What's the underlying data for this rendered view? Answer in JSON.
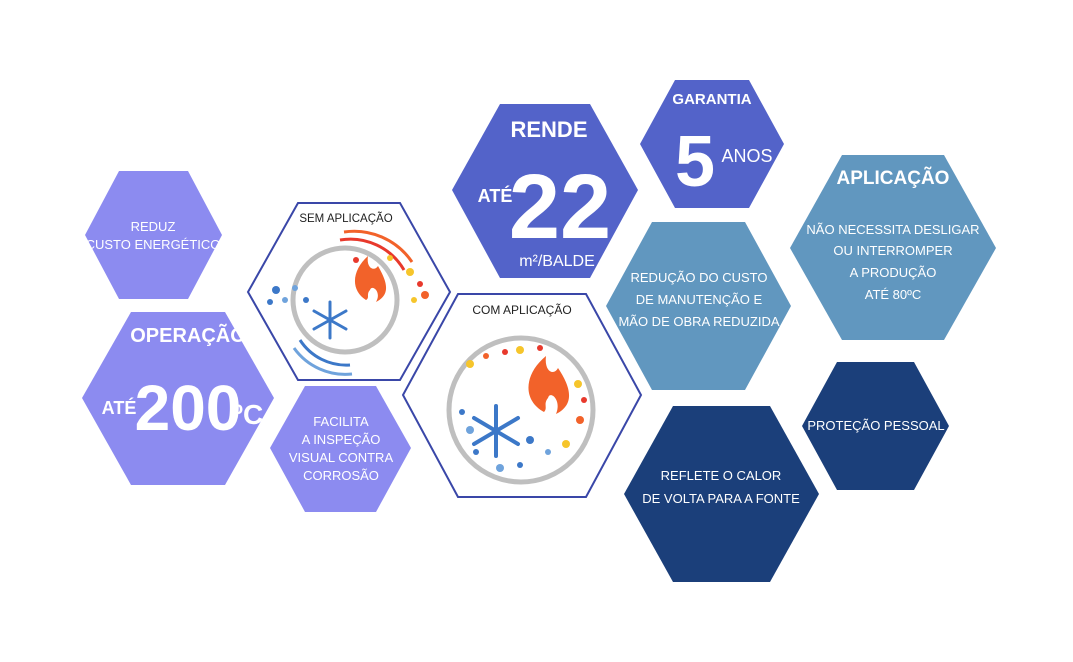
{
  "colors": {
    "light_purple": "#8C8BF0",
    "mid_blue": "#5363C9",
    "steel_blue": "#6197BF",
    "navy": "#1B3F7A",
    "hex_outline": "#3A47A8",
    "fire_orange": "#F2622A",
    "snow_blue": "#3C78C8"
  },
  "hexagons": {
    "energy": {
      "line1": "REDUZ",
      "line2": "CUSTO ENERGÉTICO"
    },
    "operation": {
      "title": "OPERAÇÃO",
      "prefix": "ATÉ",
      "value": "200",
      "unit": "ºC"
    },
    "without": {
      "label": "SEM APLICAÇÃO"
    },
    "inspection": {
      "line1": "FACILITA",
      "line2": "A INSPEÇÃO",
      "line3": "VISUAL CONTRA",
      "line4": "CORROSÃO"
    },
    "yield": {
      "title": "RENDE",
      "prefix": "ATÉ",
      "value": "22",
      "unit": "m²/BALDE"
    },
    "with": {
      "label": "COM APLICAÇÃO"
    },
    "warranty": {
      "title": "GARANTIA",
      "value": "5",
      "unit": "ANOS"
    },
    "maintenance": {
      "line1": "REDUÇÃO DO CUSTO",
      "line2": "DE MANUTENÇÃO E",
      "line3": "MÃO DE OBRA REDUZIDA"
    },
    "application": {
      "title": "APLICAÇÃO",
      "line1": "NÃO NECESSITA DESLIGAR",
      "line2": "OU INTERROMPER",
      "line3": "A PRODUÇÃO",
      "line4": "ATÉ 80ºC"
    },
    "reflect": {
      "line1": "REFLETE O CALOR",
      "line2": "DE VOLTA PARA A FONTE"
    },
    "protection": {
      "label": "PROTEÇÃO PESSOAL"
    }
  }
}
